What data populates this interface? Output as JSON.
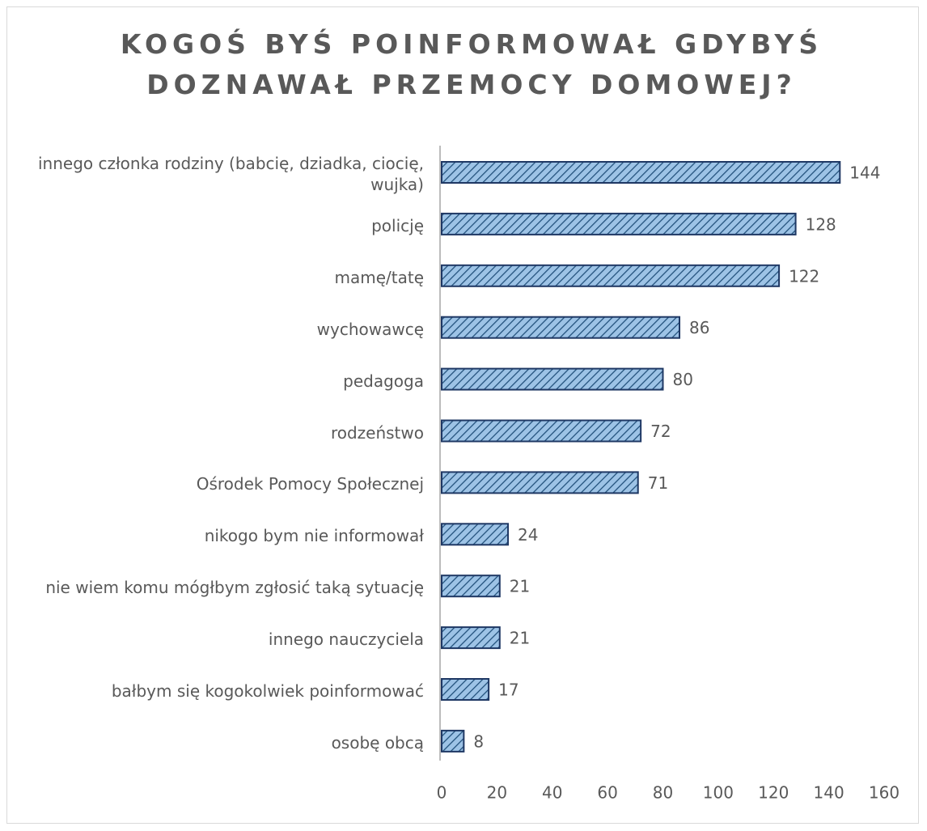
{
  "chart_data": {
    "type": "bar",
    "orientation": "horizontal",
    "title": "KOGOŚ BYŚ POINFORMOWAŁ GDYBYŚ DOZNAWAŁ PRZEMOCY DOMOWEJ?",
    "categories": [
      "innego członka rodziny (babcię, dziadka, ciocię, wujka)",
      "policję",
      "mamę/tatę",
      "wychowawcę",
      "pedagoga",
      "rodzeństwo",
      "Ośrodek Pomocy Społecznej",
      "nikogo bym nie informował",
      "nie wiem komu mógłbym zgłosić taką sytuację",
      "innego nauczyciela",
      "bałbym się kogokolwiek poinformować",
      "osobę obcą"
    ],
    "values": [
      144,
      128,
      122,
      86,
      80,
      72,
      71,
      24,
      21,
      21,
      17,
      8
    ],
    "color": "#9dc3e6",
    "xlim": [
      0,
      160
    ],
    "xticks": [
      0,
      20,
      40,
      60,
      80,
      100,
      120,
      140,
      160
    ],
    "grid": false
  }
}
